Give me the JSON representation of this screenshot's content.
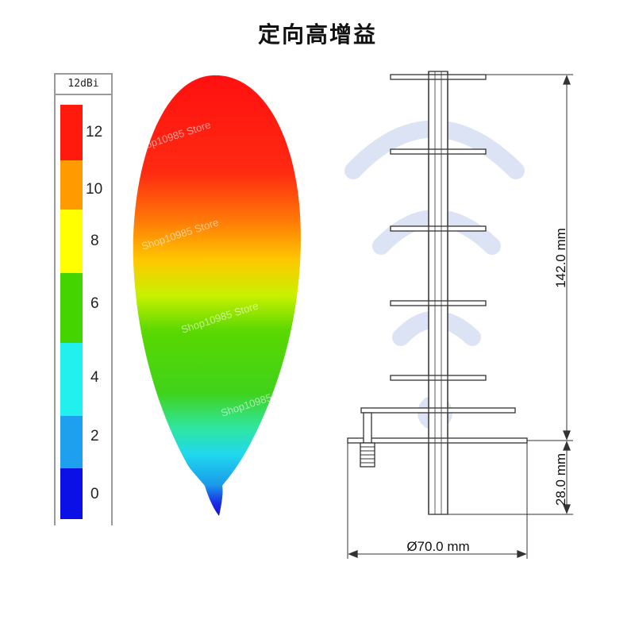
{
  "title": "定向高增益",
  "legend": {
    "unit_label": "12dBi",
    "ticks": [
      "12",
      "10",
      "8",
      "6",
      "4",
      "2",
      "0"
    ],
    "colors": [
      "#ff1a0d",
      "#ff9a00",
      "#ffff00",
      "#44d400",
      "#22f0ee",
      "#1ea0ee",
      "#0a10e6"
    ]
  },
  "watermark": "Shop10985 Store",
  "dimensions": {
    "height_main": "142.0 mm",
    "height_base": "28.0 mm",
    "diameter": "Ø70.0 mm"
  }
}
